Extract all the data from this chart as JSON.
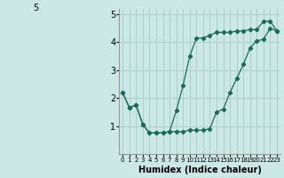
{
  "xlabel": "Humidex (Indice chaleur)",
  "background_color": "#cce8e4",
  "grid_color": "#aad0cc",
  "line_color": "#1a6b5a",
  "xlim": [
    -0.5,
    23.5
  ],
  "ylim": [
    0,
    5.2
  ],
  "yticks": [
    1,
    2,
    3,
    4,
    5
  ],
  "xticks": [
    0,
    1,
    2,
    3,
    4,
    5,
    6,
    7,
    8,
    9,
    10,
    11,
    12,
    13,
    14,
    15,
    16,
    17,
    18,
    19,
    20,
    21,
    22,
    23
  ],
  "series1_x": [
    0,
    1,
    2,
    3,
    4,
    5,
    6,
    7,
    8,
    9,
    10,
    11,
    12,
    13,
    14,
    15,
    16,
    17,
    18,
    19,
    20,
    21,
    22,
    23
  ],
  "series1_y": [
    2.2,
    1.65,
    1.75,
    1.05,
    0.75,
    0.75,
    0.75,
    0.8,
    0.8,
    0.8,
    0.85,
    0.85,
    0.85,
    0.9,
    1.5,
    1.6,
    2.2,
    2.7,
    3.2,
    3.8,
    4.05,
    4.1,
    4.5,
    4.4
  ],
  "series2_x": [
    0,
    1,
    2,
    3,
    4,
    5,
    6,
    7,
    8,
    9,
    10,
    11,
    12,
    13,
    14,
    15,
    16,
    17,
    18,
    19,
    20,
    21,
    22,
    23
  ],
  "series2_y": [
    2.2,
    1.65,
    1.75,
    1.05,
    0.75,
    0.75,
    0.75,
    0.8,
    1.55,
    2.45,
    3.5,
    4.15,
    4.15,
    4.25,
    4.35,
    4.35,
    4.35,
    4.4,
    4.4,
    4.45,
    4.45,
    4.75,
    4.75,
    4.4
  ]
}
